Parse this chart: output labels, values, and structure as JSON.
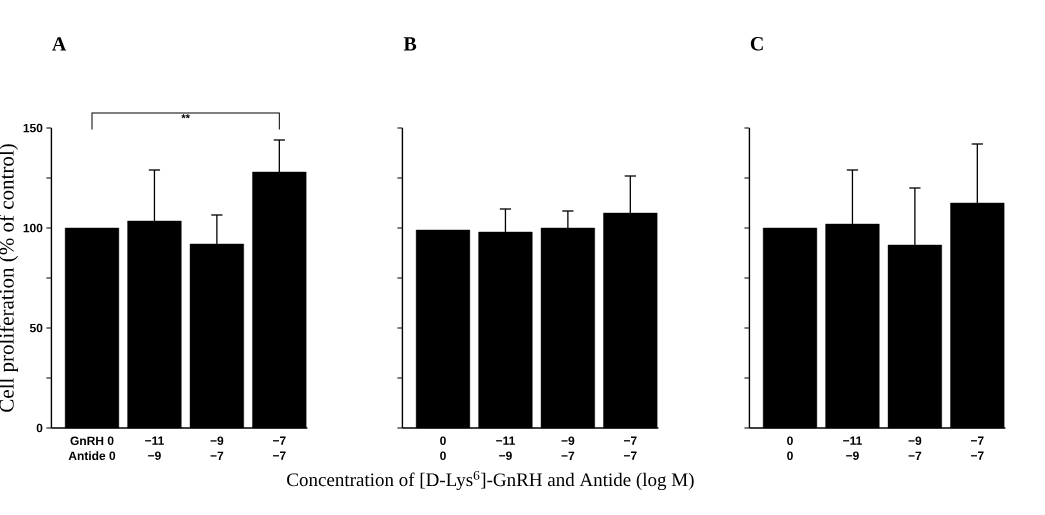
{
  "chart_data": [
    {
      "type": "bar",
      "title": "A",
      "ylabel": "Cell proliferation (% of control)",
      "categories": [
        "GnRH 0",
        "−11",
        "−9",
        "−7"
      ],
      "values": [
        100,
        103.5,
        92,
        128
      ],
      "errors": [
        null,
        [
          103.5,
          129
        ],
        [
          92,
          106.5
        ],
        [
          128,
          144
        ]
      ],
      "color": "#000000",
      "ylim": [
        0,
        150
      ],
      "yticks": [
        0,
        {
          "value": 25,
          "label": null
        },
        50,
        {
          "value": 75,
          "label": null
        },
        100,
        {
          "value": 125,
          "label": null
        },
        150
      ],
      "annotations": [
        "Antide 0",
        "−9",
        "−7",
        "−7",
        "**"
      ]
    },
    {
      "type": "bar",
      "title": "B",
      "xlabel": "Concentration of [D-Lys$^{6}$]-GnRH and Antide (log M)",
      "categories": [
        "0",
        "−11",
        "−9",
        "−7"
      ],
      "values": [
        99,
        98,
        100,
        107.5
      ],
      "errors": [
        null,
        [
          98,
          109.5
        ],
        [
          100,
          108.5
        ],
        [
          107.5,
          126
        ]
      ],
      "color": "#000000",
      "ylim": [
        0,
        150
      ],
      "yticks": [
        0,
        {
          "value": 25,
          "label": null
        },
        50,
        {
          "value": 75,
          "label": null
        },
        100,
        {
          "value": 125,
          "label": null
        },
        150
      ],
      "tick_labels": "x",
      "annotations": [
        "0",
        "−9",
        "−7",
        "−7"
      ]
    },
    {
      "type": "bar",
      "title": "C",
      "categories": [
        "0",
        "−11",
        "−9",
        "−7"
      ],
      "values": [
        100,
        102,
        91.5,
        112.5
      ],
      "errors": [
        null,
        [
          102,
          129
        ],
        [
          91.5,
          120
        ],
        [
          112.5,
          142
        ]
      ],
      "color": "#000000",
      "ylim": [
        0,
        150
      ],
      "yticks": [
        0,
        {
          "value": 25,
          "label": null
        },
        50,
        {
          "value": 75,
          "label": null
        },
        100,
        {
          "value": 125,
          "label": null
        },
        150
      ],
      "tick_labels": "x",
      "annotations": [
        "0",
        "−9",
        "−7",
        "−7"
      ]
    }
  ]
}
